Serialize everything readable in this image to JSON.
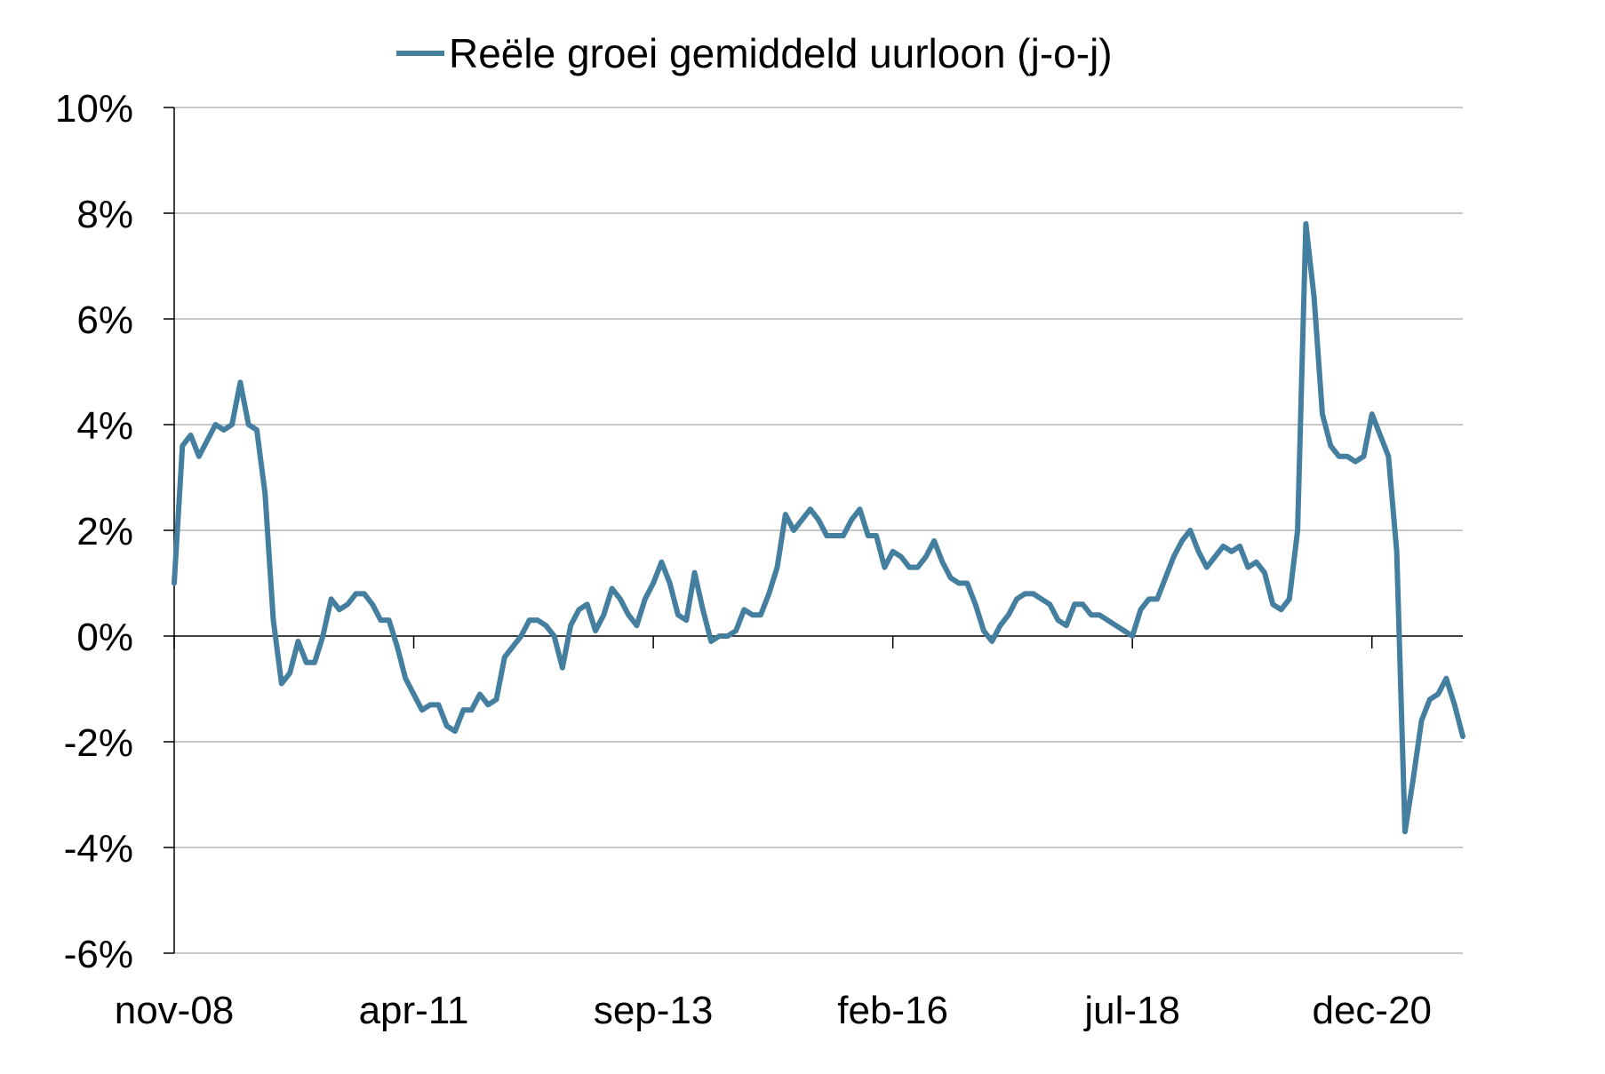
{
  "chart_data": {
    "type": "line",
    "title": "",
    "xlabel": "",
    "ylabel": "",
    "ylim": [
      -6,
      10
    ],
    "y_ticks": [
      10,
      8,
      6,
      4,
      2,
      0,
      -2,
      -4,
      -6
    ],
    "y_tick_labels": [
      "10%",
      "8%",
      "6%",
      "4%",
      "2%",
      "0%",
      "-2%",
      "-4%",
      "-6%"
    ],
    "x_tick_labels": [
      "nov-08",
      "apr-11",
      "sep-13",
      "feb-16",
      "jul-18",
      "dec-20"
    ],
    "x_tick_months": [
      0,
      29,
      58,
      87,
      116,
      145
    ],
    "grid": "horizontal",
    "legend_position": "top",
    "series": [
      {
        "name": "Reële groei gemiddeld uurloon (j-o-j)",
        "color": "#457fa0",
        "values": [
          1.0,
          3.6,
          3.8,
          3.4,
          3.7,
          4.0,
          3.9,
          4.0,
          4.8,
          4.0,
          3.9,
          2.7,
          0.3,
          -0.9,
          -0.7,
          -0.1,
          -0.5,
          -0.5,
          0.0,
          0.7,
          0.5,
          0.6,
          0.8,
          0.8,
          0.6,
          0.3,
          0.3,
          -0.2,
          -0.8,
          -1.1,
          -1.4,
          -1.3,
          -1.3,
          -1.7,
          -1.8,
          -1.4,
          -1.4,
          -1.1,
          -1.3,
          -1.2,
          -0.4,
          -0.2,
          0.0,
          0.3,
          0.3,
          0.2,
          0.0,
          -0.6,
          0.2,
          0.5,
          0.6,
          0.1,
          0.4,
          0.9,
          0.7,
          0.4,
          0.2,
          0.7,
          1.0,
          1.4,
          1.0,
          0.4,
          0.3,
          1.2,
          0.5,
          -0.1,
          0.0,
          0.0,
          0.1,
          0.5,
          0.4,
          0.4,
          0.8,
          1.3,
          2.3,
          2.0,
          2.2,
          2.4,
          2.2,
          1.9,
          1.9,
          1.9,
          2.2,
          2.4,
          1.9,
          1.9,
          1.3,
          1.6,
          1.5,
          1.3,
          1.3,
          1.5,
          1.8,
          1.4,
          1.1,
          1.0,
          1.0,
          0.6,
          0.1,
          -0.1,
          0.2,
          0.4,
          0.7,
          0.8,
          0.8,
          0.7,
          0.6,
          0.3,
          0.2,
          0.6,
          0.6,
          0.4,
          0.4,
          0.3,
          0.2,
          0.1,
          0.0,
          0.5,
          0.7,
          0.7,
          1.1,
          1.5,
          1.8,
          2.0,
          1.6,
          1.3,
          1.5,
          1.7,
          1.6,
          1.7,
          1.3,
          1.4,
          1.2,
          0.6,
          0.5,
          0.7,
          2.0,
          7.8,
          6.4,
          4.2,
          3.6,
          3.4,
          3.4,
          3.3,
          3.4,
          4.2,
          3.8,
          3.4,
          1.6,
          -3.7,
          -2.7,
          -1.6,
          -1.2,
          -1.1,
          -0.8,
          -1.3,
          -1.9
        ]
      }
    ]
  }
}
